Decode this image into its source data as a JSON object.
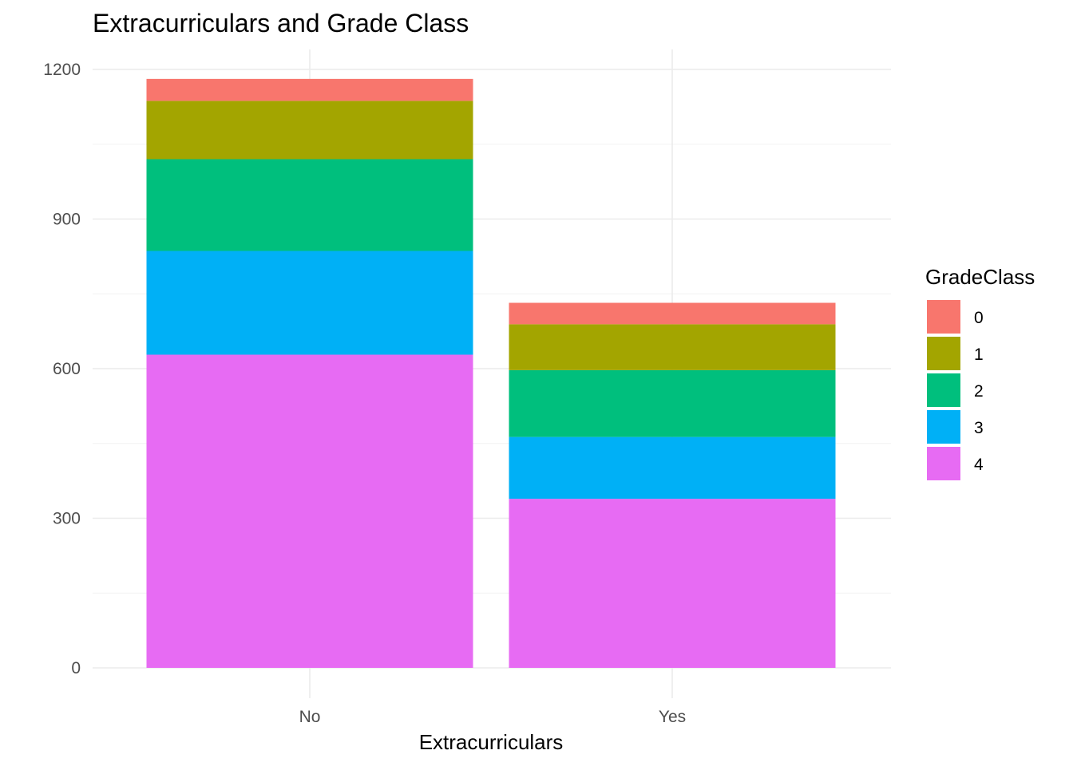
{
  "chart_data": {
    "type": "bar",
    "stacked": true,
    "title": "Extracurriculars and Grade Class",
    "xlabel": "Extracurriculars",
    "ylabel": "",
    "categories": [
      "No",
      "Yes"
    ],
    "ylim": [
      0,
      1200
    ],
    "yticks": [
      "0",
      "300",
      "600",
      "900",
      "1200"
    ],
    "legend_title": "GradeClass",
    "legend_position": "right",
    "grid": true,
    "series": [
      {
        "name": "0",
        "color": "#F8766D",
        "values": [
          44,
          43
        ]
      },
      {
        "name": "1",
        "color": "#A3A500",
        "values": [
          117,
          92
        ]
      },
      {
        "name": "2",
        "color": "#00BF7D",
        "values": [
          184,
          134
        ]
      },
      {
        "name": "3",
        "color": "#00B0F6",
        "values": [
          208,
          124
        ]
      },
      {
        "name": "4",
        "color": "#E76BF3",
        "values": [
          628,
          339
        ]
      }
    ]
  }
}
